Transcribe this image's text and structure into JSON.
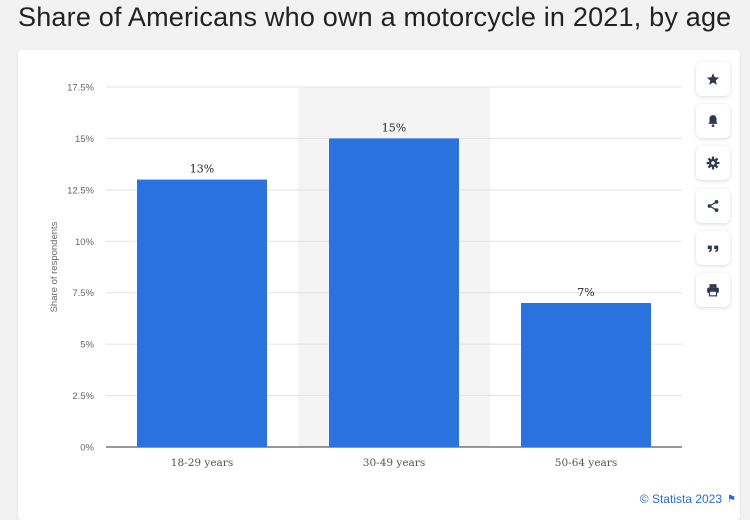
{
  "page": {
    "title": "Share of Americans who own a motorcycle in 2021, by age",
    "credit": "© Statista 2023"
  },
  "sidebar": {
    "buttons": [
      {
        "name": "star-icon"
      },
      {
        "name": "bell-icon"
      },
      {
        "name": "gear-icon"
      },
      {
        "name": "share-icon"
      },
      {
        "name": "quote-icon"
      },
      {
        "name": "print-icon"
      }
    ]
  },
  "colors": {
    "bar": "#2a72de",
    "highlight": "#f4f4f4",
    "grid": "#e3e3e3",
    "credit": "#2b6cd7"
  },
  "chart_data": {
    "type": "bar",
    "categories": [
      "18-29 years",
      "30-49 years",
      "50-64 years"
    ],
    "values": [
      13,
      15,
      7
    ],
    "data_labels": [
      "13%",
      "15%",
      "7%"
    ],
    "ylabel": "Share of respondents",
    "xlabel": "",
    "ylim": [
      0,
      17.5
    ],
    "yticks": [
      "0%",
      "2.5%",
      "5%",
      "7.5%",
      "10%",
      "12.5%",
      "15%",
      "17.5%"
    ],
    "highlighted_category": "30-49 years",
    "grid": true,
    "legend": "none"
  }
}
